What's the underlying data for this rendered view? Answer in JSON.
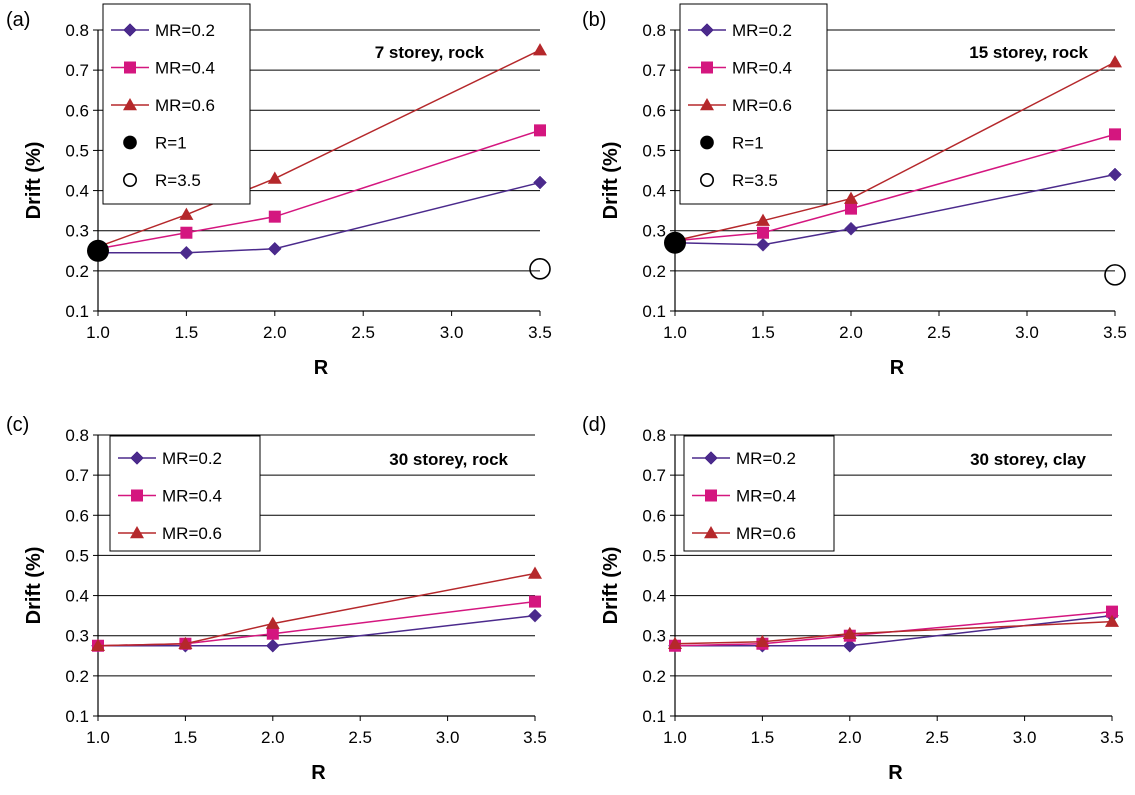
{
  "colors": {
    "MR=0.2": "#4B2A8C",
    "MR=0.4": "#D4167F",
    "MR=0.6": "#B5282B",
    "grid": "#000000",
    "background": "#ffffff"
  },
  "chart_data": [
    {
      "type": "line",
      "panel_label": "(a)",
      "annotation": "7 storey, rock",
      "xlabel": "R",
      "ylabel": "Drift (%)",
      "xlim": [
        1.0,
        3.5
      ],
      "ylim": [
        0.1,
        0.8
      ],
      "x_ticks": [
        "1.0",
        "1.5",
        "2.0",
        "2.5",
        "3.0",
        "3.5"
      ],
      "y_ticks": [
        "0.1",
        "0.2",
        "0.3",
        "0.4",
        "0.5",
        "0.6",
        "0.7",
        "0.8"
      ],
      "grid": "horizontal",
      "legend_position": "top-left",
      "series": [
        {
          "name": "MR=0.2",
          "marker": "diamond",
          "x": [
            1.0,
            1.5,
            2.0,
            3.5
          ],
          "y": [
            0.245,
            0.245,
            0.255,
            0.42
          ]
        },
        {
          "name": "MR=0.4",
          "marker": "square",
          "x": [
            1.0,
            1.5,
            2.0,
            3.5
          ],
          "y": [
            0.255,
            0.295,
            0.335,
            0.55
          ]
        },
        {
          "name": "MR=0.6",
          "marker": "triangle",
          "x": [
            1.0,
            1.5,
            2.0,
            3.5
          ],
          "y": [
            0.26,
            0.34,
            0.43,
            0.75
          ]
        }
      ],
      "points": [
        {
          "name": "R=1",
          "marker": "filled-circle",
          "x": 1.0,
          "y": 0.25
        },
        {
          "name": "R=3.5",
          "marker": "open-circle",
          "x": 3.5,
          "y": 0.205
        }
      ]
    },
    {
      "type": "line",
      "panel_label": "(b)",
      "annotation": "15 storey, rock",
      "xlabel": "R",
      "ylabel": "Drift (%)",
      "xlim": [
        1.0,
        3.5
      ],
      "ylim": [
        0.1,
        0.8
      ],
      "x_ticks": [
        "1.0",
        "1.5",
        "2.0",
        "2.5",
        "3.0",
        "3.5"
      ],
      "y_ticks": [
        "0.1",
        "0.2",
        "0.3",
        "0.4",
        "0.5",
        "0.6",
        "0.7",
        "0.8"
      ],
      "grid": "horizontal",
      "legend_position": "top-left",
      "series": [
        {
          "name": "MR=0.2",
          "marker": "diamond",
          "x": [
            1.0,
            1.5,
            2.0,
            3.5
          ],
          "y": [
            0.27,
            0.265,
            0.305,
            0.44
          ]
        },
        {
          "name": "MR=0.4",
          "marker": "square",
          "x": [
            1.0,
            1.5,
            2.0,
            3.5
          ],
          "y": [
            0.275,
            0.295,
            0.355,
            0.54
          ]
        },
        {
          "name": "MR=0.6",
          "marker": "triangle",
          "x": [
            1.0,
            1.5,
            2.0,
            3.5
          ],
          "y": [
            0.275,
            0.325,
            0.38,
            0.72
          ]
        }
      ],
      "points": [
        {
          "name": "R=1",
          "marker": "filled-circle",
          "x": 1.0,
          "y": 0.27
        },
        {
          "name": "R=3.5",
          "marker": "open-circle",
          "x": 3.5,
          "y": 0.19
        }
      ]
    },
    {
      "type": "line",
      "panel_label": "(c)",
      "annotation": "30 storey, rock",
      "xlabel": "R",
      "ylabel": "Drift (%)",
      "xlim": [
        1.0,
        3.5
      ],
      "ylim": [
        0.1,
        0.8
      ],
      "x_ticks": [
        "1.0",
        "1.5",
        "2.0",
        "2.5",
        "3.0",
        "3.5"
      ],
      "y_ticks": [
        "0.1",
        "0.2",
        "0.3",
        "0.4",
        "0.5",
        "0.6",
        "0.7",
        "0.8"
      ],
      "grid": "horizontal",
      "legend_position": "top-left",
      "series": [
        {
          "name": "MR=0.2",
          "marker": "diamond",
          "x": [
            1.0,
            1.5,
            2.0,
            3.5
          ],
          "y": [
            0.275,
            0.275,
            0.275,
            0.35
          ]
        },
        {
          "name": "MR=0.4",
          "marker": "square",
          "x": [
            1.0,
            1.5,
            2.0,
            3.5
          ],
          "y": [
            0.275,
            0.28,
            0.305,
            0.385
          ]
        },
        {
          "name": "MR=0.6",
          "marker": "triangle",
          "x": [
            1.0,
            1.5,
            2.0,
            3.5
          ],
          "y": [
            0.275,
            0.28,
            0.33,
            0.455
          ]
        }
      ],
      "points": []
    },
    {
      "type": "line",
      "panel_label": "(d)",
      "annotation": "30 storey, clay",
      "xlabel": "R",
      "ylabel": "Drift (%)",
      "xlim": [
        1.0,
        3.5
      ],
      "ylim": [
        0.1,
        0.8
      ],
      "x_ticks": [
        "1.0",
        "1.5",
        "2.0",
        "2.5",
        "3.0",
        "3.5"
      ],
      "y_ticks": [
        "0.1",
        "0.2",
        "0.3",
        "0.4",
        "0.5",
        "0.6",
        "0.7",
        "0.8"
      ],
      "grid": "horizontal",
      "legend_position": "top-left",
      "series": [
        {
          "name": "MR=0.2",
          "marker": "diamond",
          "x": [
            1.0,
            1.5,
            2.0,
            3.5
          ],
          "y": [
            0.275,
            0.275,
            0.275,
            0.35
          ]
        },
        {
          "name": "MR=0.4",
          "marker": "square",
          "x": [
            1.0,
            1.5,
            2.0,
            3.5
          ],
          "y": [
            0.275,
            0.28,
            0.3,
            0.36
          ]
        },
        {
          "name": "MR=0.6",
          "marker": "triangle",
          "x": [
            1.0,
            1.5,
            2.0,
            3.5
          ],
          "y": [
            0.28,
            0.285,
            0.305,
            0.335
          ]
        }
      ],
      "points": []
    }
  ]
}
